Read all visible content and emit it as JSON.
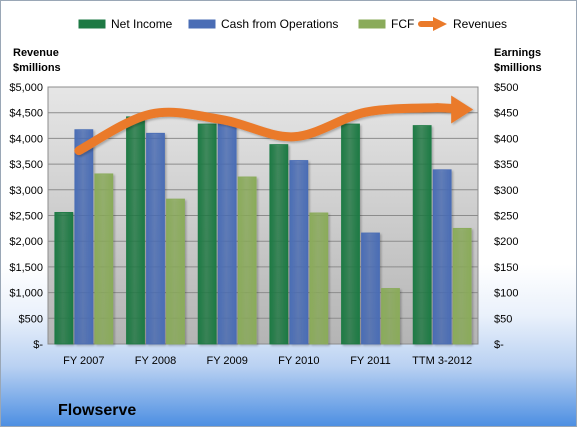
{
  "chart_data": {
    "type": "bar",
    "categories": [
      "FY 2007",
      "FY 2008",
      "FY 2009",
      "FY 2010",
      "FY 2011",
      "TTM 3-2012"
    ],
    "series": [
      {
        "name": "Net Income",
        "type": "bar",
        "axis": "right",
        "values": [
          256,
          442,
          428,
          388,
          428,
          425
        ],
        "color": "#1e7a44"
      },
      {
        "name": "Cash from Operations",
        "type": "bar",
        "axis": "right",
        "values": [
          417,
          410,
          433,
          357,
          216,
          339
        ],
        "color": "#4a6db5"
      },
      {
        "name": "FCF",
        "type": "bar",
        "axis": "right",
        "values": [
          331,
          282,
          325,
          255,
          108,
          225
        ],
        "color": "#8aab5a"
      },
      {
        "name": "Revenues",
        "type": "line",
        "axis": "left",
        "values": [
          3763,
          4473,
          4365,
          4032,
          4510,
          4600
        ],
        "color": "#ea7a2a"
      }
    ],
    "left_axis": {
      "label_line1": "Revenue",
      "label_line2": "$millions",
      "range": [
        0,
        5000
      ],
      "ticks": [
        0,
        500,
        1000,
        1500,
        2000,
        2500,
        3000,
        3500,
        4000,
        4500,
        5000
      ],
      "tick_labels": [
        "$-",
        "$500",
        "$1,000",
        "$1,500",
        "$2,000",
        "$2,500",
        "$3,000",
        "$3,500",
        "$4,000",
        "$4,500",
        "$5,000"
      ]
    },
    "right_axis": {
      "label_line1": "Earnings",
      "label_line2": "$millions",
      "range": [
        0,
        500
      ],
      "ticks": [
        0,
        50,
        100,
        150,
        200,
        250,
        300,
        350,
        400,
        450,
        500
      ],
      "tick_labels": [
        "$-",
        "$50",
        "$100",
        "$150",
        "$200",
        "$250",
        "$300",
        "$350",
        "$400",
        "$450",
        "$500"
      ]
    },
    "grid": true,
    "legend_position": "top",
    "company": "Flowserve"
  }
}
